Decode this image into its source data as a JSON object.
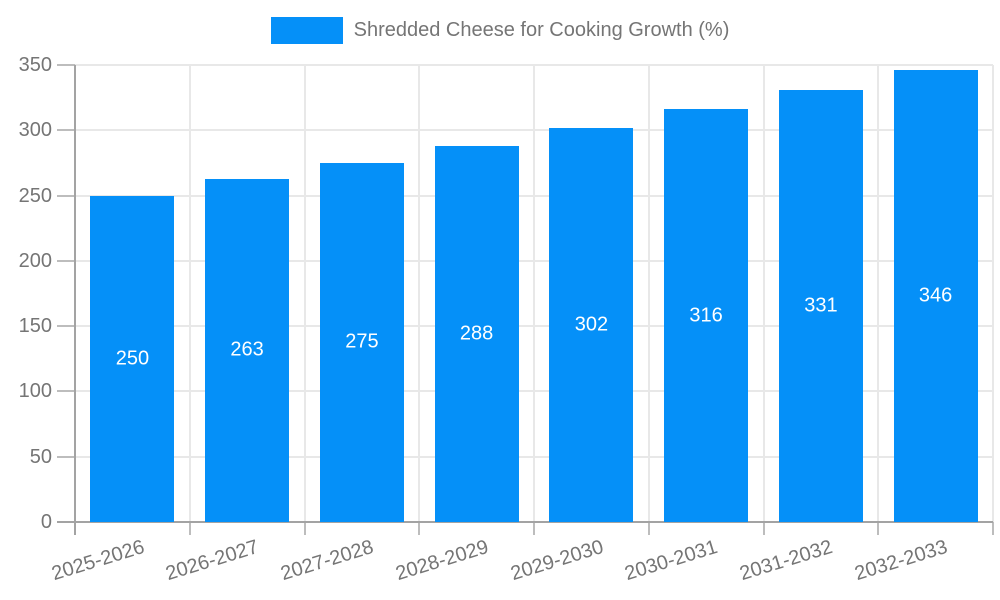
{
  "chart_data": {
    "type": "bar",
    "legend": "Shredded Cheese for Cooking Growth (%)",
    "categories": [
      "2025-2026",
      "2026-2027",
      "2027-2028",
      "2028-2029",
      "2029-2030",
      "2030-2031",
      "2031-2032",
      "2032-2033"
    ],
    "values": [
      250,
      263,
      275,
      288,
      302,
      316,
      331,
      346
    ],
    "value_labels": [
      "250",
      "263",
      "275",
      "288",
      "302",
      "316",
      "331",
      "346"
    ],
    "ylim": [
      0,
      350
    ],
    "yticks": [
      0,
      50,
      100,
      150,
      200,
      250,
      300,
      350
    ],
    "ytick_labels": [
      "0",
      "50",
      "100",
      "150",
      "200",
      "250",
      "300",
      "350"
    ],
    "grid": true,
    "legend_position": "top-center",
    "bar_color": "#0590f8",
    "bar_label_color": "#ffffff",
    "grid_color": "#e8e8e8",
    "axis_color": "#a3a3a3",
    "tick_color": "#bdbdbd",
    "text_color": "#757575"
  }
}
